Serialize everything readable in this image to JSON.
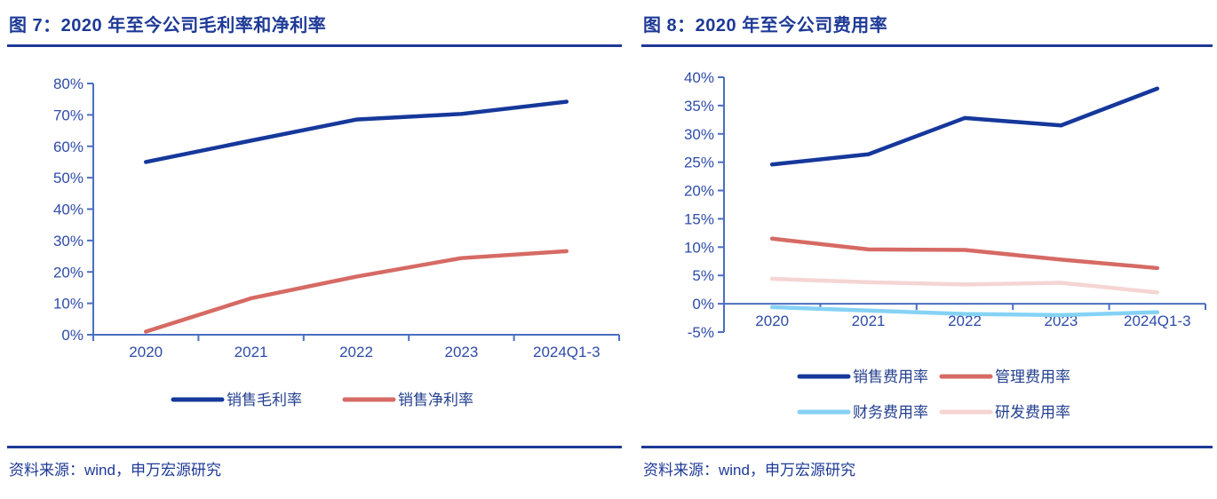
{
  "panels": [
    {
      "title": "图 7：2020 年至今公司毛利率和净利率",
      "source": "资料来源：wind，申万宏源研究"
    },
    {
      "title": "图 8：2020 年至今公司费用率",
      "source": "资料来源：wind，申万宏源研究"
    }
  ],
  "chart_data": [
    {
      "type": "line",
      "title": "图 7：2020 年至今公司毛利率和净利率",
      "categories": [
        "2020",
        "2021",
        "2022",
        "2023",
        "2024Q1-3"
      ],
      "series": [
        {
          "name": "销售毛利率",
          "color": "#16389B",
          "values": [
            55.0,
            61.8,
            68.5,
            70.3,
            74.2
          ]
        },
        {
          "name": "销售净利率",
          "color": "#D66A64",
          "values": [
            1.0,
            11.6,
            18.5,
            24.4,
            26.6
          ]
        }
      ],
      "xlabel": "",
      "ylabel": "",
      "ylim": [
        0,
        80
      ],
      "ytick_step": 10,
      "ytick_format": "percent",
      "grid": false,
      "legend_position": "bottom"
    },
    {
      "type": "line",
      "title": "图 8：2020 年至今公司费用率",
      "categories": [
        "2020",
        "2021",
        "2022",
        "2023",
        "2024Q1-3"
      ],
      "series": [
        {
          "name": "销售费用率",
          "color": "#16389B",
          "values": [
            24.6,
            26.4,
            32.8,
            31.5,
            38.0
          ]
        },
        {
          "name": "管理费用率",
          "color": "#D66A64",
          "values": [
            11.5,
            9.6,
            9.5,
            7.8,
            6.3
          ]
        },
        {
          "name": "财务费用率",
          "color": "#85D2F5",
          "values": [
            -0.6,
            -1.2,
            -1.8,
            -2.0,
            -1.5
          ]
        },
        {
          "name": "研发费用率",
          "color": "#F5D5D3",
          "values": [
            4.4,
            3.8,
            3.4,
            3.7,
            2.0
          ]
        }
      ],
      "xlabel": "",
      "ylabel": "",
      "ylim": [
        -5,
        40
      ],
      "ytick_step": 5,
      "ytick_format": "percent",
      "grid": false,
      "legend_position": "bottom"
    }
  ],
  "colors": {
    "title_navy": "#1E3A96",
    "axis_blue": "#4A6FC0",
    "tick_label_blue": "#2E4CA8",
    "legend_text_blue": "#24408F"
  }
}
